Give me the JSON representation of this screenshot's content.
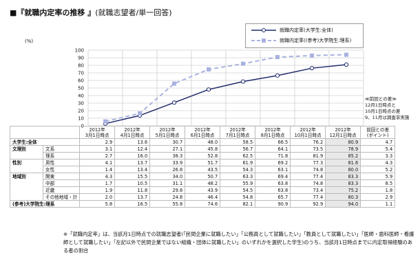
{
  "title": "■『就職内定率の推移 』",
  "subtitle": "(就職志望者/単一回答)",
  "chart_data": {
    "type": "line",
    "ylabel": "(%)",
    "ylim": [
      0,
      100
    ],
    "yticks": [
      0,
      10,
      20,
      30,
      40,
      50,
      60,
      70,
      80,
      90,
      100
    ],
    "categories": [
      "2012年3月1日時点",
      "2012年4月1日時点",
      "2012年5月1日時点",
      "2012年6月1日時点",
      "2012年7月1日時点",
      "2012年8月1日時点",
      "2012年10月1日時点",
      "2012年12月1日時点"
    ],
    "grid": true,
    "legend_position": "top-right",
    "series": [
      {
        "name": "就職内定率(大学生:全体)",
        "values": [
          2.9,
          13.6,
          30.7,
          48.0,
          58.5,
          66.5,
          76.2,
          80.9
        ],
        "color": "#1f2a6b",
        "style": "solid"
      },
      {
        "name": "就職内定率((参考)大学院生:理系)",
        "values": [
          5.8,
          16.5,
          55.8,
          74.6,
          82.1,
          90.9,
          92.9,
          94.0
        ],
        "color": "#a9b2e0",
        "style": "dashed"
      }
    ]
  },
  "side_note": [
    "≪前回との差≫",
    "12月1日時点と",
    "10月1日時点の差",
    "9、11月は調査非実施"
  ],
  "table": {
    "headers": [
      [
        "",
        ""
      ],
      [
        "2012年",
        "3月1日時点"
      ],
      [
        "2012年",
        "4月1日時点"
      ],
      [
        "2012年",
        "5月1日時点"
      ],
      [
        "2012年",
        "6月1日時点"
      ],
      [
        "2012年",
        "7月1日時点"
      ],
      [
        "2012年",
        "8月1日時点"
      ],
      [
        "2012年",
        "10月1日時点"
      ],
      [
        "2012年",
        "12月1日時点"
      ],
      [
        "前回との差",
        "(ポイント)"
      ]
    ],
    "rows": [
      {
        "group": "大学生:全体",
        "sub": "",
        "values": [
          "2.9",
          "13.6",
          "30.7",
          "48.0",
          "58.5",
          "66.5",
          "76.2",
          "80.9",
          "4.7"
        ]
      },
      {
        "group": "文理別",
        "sub": "文系",
        "values": [
          "3.1",
          "12.4",
          "27.1",
          "45.8",
          "56.7",
          "64.1",
          "73.5",
          "78.9",
          "5.4"
        ]
      },
      {
        "group": "",
        "sub": "理系",
        "values": [
          "2.7",
          "16.0",
          "38.3",
          "52.8",
          "62.5",
          "71.8",
          "81.9",
          "85.2",
          "3.3"
        ]
      },
      {
        "group": "性別",
        "sub": "男性",
        "values": [
          "4.1",
          "13.7",
          "33.9",
          "51.7",
          "61.9",
          "69.2",
          "77.3",
          "81.6",
          "4.3"
        ]
      },
      {
        "group": "",
        "sub": "女性",
        "values": [
          "1.4",
          "13.4",
          "26.8",
          "43.5",
          "54.3",
          "63.1",
          "74.8",
          "80.0",
          "5.2"
        ]
      },
      {
        "group": "地域別",
        "sub": "関東",
        "values": [
          "4.3",
          "15.5",
          "34.0",
          "50.7",
          "63.3",
          "69.4",
          "77.4",
          "83.3",
          "5.9"
        ]
      },
      {
        "group": "",
        "sub": "中部",
        "values": [
          "1.7",
          "10.5",
          "31.1",
          "48.2",
          "55.9",
          "63.8",
          "74.8",
          "83.3",
          "8.5"
        ]
      },
      {
        "group": "",
        "sub": "近畿",
        "values": [
          "1.9",
          "11.8",
          "29.8",
          "43.9",
          "54.5",
          "63.8",
          "73.4",
          "75.2",
          "1.8"
        ]
      },
      {
        "group": "",
        "sub": "その他地域・計",
        "values": [
          "2.0",
          "13.7",
          "24.8",
          "46.4",
          "54.8",
          "65.7",
          "77.4",
          "80.3",
          "2.9"
        ]
      },
      {
        "group": "(参考)大学院生:理系",
        "sub": "",
        "values": [
          "5.8",
          "16.5",
          "55.8",
          "74.6",
          "82.1",
          "90.9",
          "92.9",
          "94.0",
          "1.1"
        ]
      }
    ]
  },
  "footnote": "※「就職内定率」は、当該月1日時点での就職志望者(「民間企業に就職したい」「公務員として就職したい」「教員として就職したい」「医師・歯科医師・看護師として就職したい」「左記以外で民間企業ではない組織・団体に就職したい」のいずれかを選択した学生)のうち、当該月1日時点までに内定取得経験のある者の割合"
}
